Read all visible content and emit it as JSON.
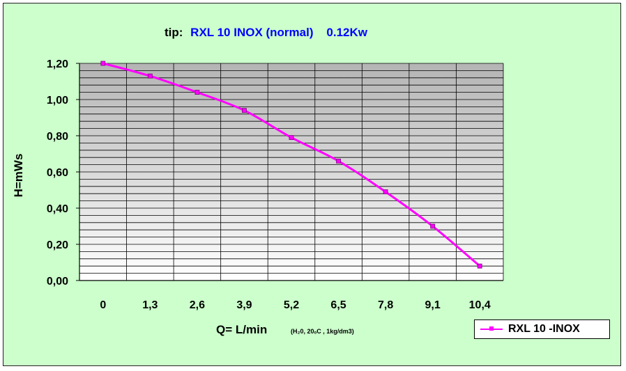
{
  "chart_data": {
    "type": "line",
    "title_prefix": "tip:",
    "title_main": "RXL 10 INOX (normal)    0.12Kw",
    "xlabel": "Q= L/min",
    "xlabel_note": "(H₂0, 20ₒC , 1kg/dm3)",
    "ylabel": "H=mWs",
    "categories": [
      "0",
      "1,3",
      "2,6",
      "3,9",
      "5,2",
      "6,5",
      "7,8",
      "9,1",
      "10,4"
    ],
    "y_ticks": [
      "0,00",
      "0,20",
      "0,40",
      "0,60",
      "0,80",
      "1,00",
      "1,20"
    ],
    "ylim": [
      0,
      1.2
    ],
    "grid": true,
    "legend_position": "bottom-right",
    "series": [
      {
        "name": "RXL 10 -INOX",
        "color": "#ff00ff",
        "values": [
          1.2,
          1.13,
          1.04,
          0.94,
          0.79,
          0.66,
          0.49,
          0.3,
          0.08
        ]
      }
    ]
  },
  "colors": {
    "background": "#ccffcc",
    "series": "#ff00ff",
    "title_prefix": "#000000",
    "title_main": "#0000ff"
  }
}
